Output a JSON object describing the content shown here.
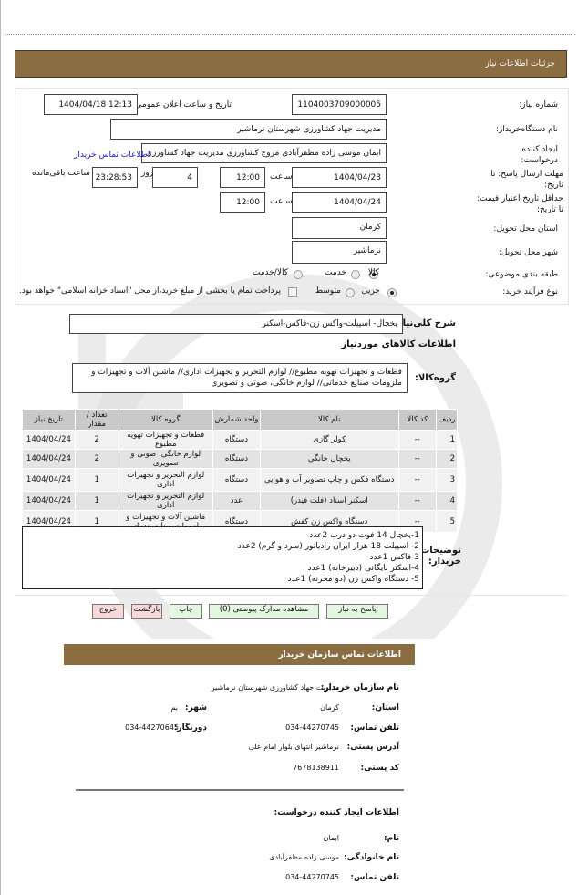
{
  "header": {
    "title": "جزئیات اطلاعات نیاز"
  },
  "form": {
    "need_number_label": "شماره نیاز:",
    "need_number": "1104003709000005",
    "announce_label": "تاریخ و ساعت اعلان عمومی:",
    "announce_value": "1404/04/18 12:13",
    "buyer_label": "نام دستگاه‌خریدار:",
    "buyer_value": "مدیریت جهاد کشاورزی شهرستان نرماشیر",
    "creator_label": "ایجاد کننده درخواست:",
    "creator_value": "ایمان موسی زاده مظفرآبادی مروج کشاورزی مدیریت جهاد کشاورزی شهرستان نرماشیر",
    "contact_link": "اطلاعات تماس خریدار",
    "deadline_label": "مهلت ارسال پاسخ: تا تاریخ:",
    "deadline_date": "1404/04/23",
    "time_label": "ساعت",
    "deadline_time": "12:00",
    "days_label": "روز",
    "days_value": "4",
    "remaining_value": "23:28:53",
    "remaining_label": "ساعت باقی‌مانده",
    "validity_label": "حداقل تاریخ اعتبار قیمت: تا تاریخ:",
    "validity_date": "1404/04/24",
    "validity_time": "12:00",
    "province_label": "استان محل تحویل:",
    "province_value": "کرمان",
    "city_label": "شهر محل تحویل:",
    "city_value": "نرماشیر",
    "category_label": "طبقه بندی موضوعی:",
    "category_options": [
      "کالا",
      "خدمت",
      "کالا/خدمت"
    ],
    "category_selected": "کالا",
    "process_label": "نوع فرآیند خرید:",
    "process_options": [
      "جزیی",
      "متوسط"
    ],
    "process_selected": "جزیی",
    "treasury_text": "پرداخت تمام یا بخشی از مبلغ خرید،از محل \"اسناد خزانه اسلامی\" خواهد بود."
  },
  "summary": {
    "label": "شرح کلی‌نیاز:",
    "value": "یخچال- اسپیلت-واکس زن-فاکس-اسکنر"
  },
  "goods_title": "اطلاعات کالاهای موردنیاز",
  "group": {
    "label": "گروه‌کالا:",
    "value": "قطعات و تجهیزات تهویه مطبوع// لوازم التحریر و تجهیزات اداری// ماشین آلات و تجهیزات و ملزومات صنایع خدماتی// لوازم خانگی، صوتی و تصویری"
  },
  "table": {
    "headers": [
      "ردیف",
      "کد کالا",
      "نام کالا",
      "واحد شمارش",
      "گروه کالا",
      "تعداد / مقدار",
      "تاریخ نیاز"
    ],
    "rows": [
      [
        "1",
        "--",
        "کولر گازی",
        "دستگاه",
        "قطعات و تجهیزات تهویه مطبوع",
        "2",
        "1404/04/24"
      ],
      [
        "2",
        "--",
        "یخچال خانگی",
        "دستگاه",
        "لوازم خانگی، صوتی و تصویری",
        "2",
        "1404/04/24"
      ],
      [
        "3",
        "--",
        "دستگاه فکس و چاپ تصاویر آب و هوایی",
        "دستگاه",
        "لوازم التحریر و تجهیزات اداری",
        "1",
        "1404/04/24"
      ],
      [
        "4",
        "--",
        "اسکنر اسناد (فلت فیدر)",
        "عدد",
        "لوازم التحریر و تجهیزات اداری",
        "1",
        "1404/04/24"
      ],
      [
        "5",
        "--",
        "دستگاه واکس زن کفش",
        "دستگاه",
        "ماشین آلات و تجهیزات و ملزومات صنایع خدماتی",
        "1",
        "1404/04/24"
      ]
    ]
  },
  "notes": {
    "label": "توضیحات خریدار:",
    "lines": [
      "1-یخچال 14 فوت دو درب   2عدد",
      "2- اسپیلت 18 هزار ایران رادیاتور (سرد و گرم)  2عدد",
      "3-فاکس      1عدد",
      "4-اسکنر بایگانی (دبیرخانه)    1عدد",
      "5- دستگاه واکس زن (دو مخزنه)  1عدد"
    ]
  },
  "buttons": {
    "reply": "پاسخ به نیاز",
    "attachments": "مشاهده مدارک پیوستی (0)",
    "print": "چاپ",
    "back": "بازگشت",
    "exit": "خروج"
  },
  "contact": {
    "title": "اطلاعات تماس سازمان خریدار",
    "org_label": "نام سازمان خریدار:",
    "org_value": "مدیریت جهاد کشاورزی شهرستان نرماشیر",
    "province_label": "استان:",
    "province_value": "کرمان",
    "city_label": "شهر:",
    "city_value": "بم",
    "phone_label": "تلفن تماس:",
    "phone_value": "034-44270745",
    "fax_label": "دورنگار:",
    "fax_value": "034-44270645",
    "address_label": "آدرس پستی:",
    "address_value": "نرماشیر انتهای بلوار امام علی",
    "postal_label": "کد پستی:",
    "postal_value": "7678138911",
    "creator_title": "اطلاعات ایجاد کننده درخواست:",
    "name_label": "نام:",
    "name_value": "ایمان",
    "family_label": "نام خانوادگی:",
    "family_value": "موسی زاده مظفرآبادی",
    "cphone_label": "تلفن تماس:",
    "cphone_value": "034-44270745"
  },
  "colors": {
    "brand": "#8B6D42",
    "link": "#1a1acc",
    "exit_btn": "#f8d8d8",
    "action_btn": "#e4f7e0"
  }
}
